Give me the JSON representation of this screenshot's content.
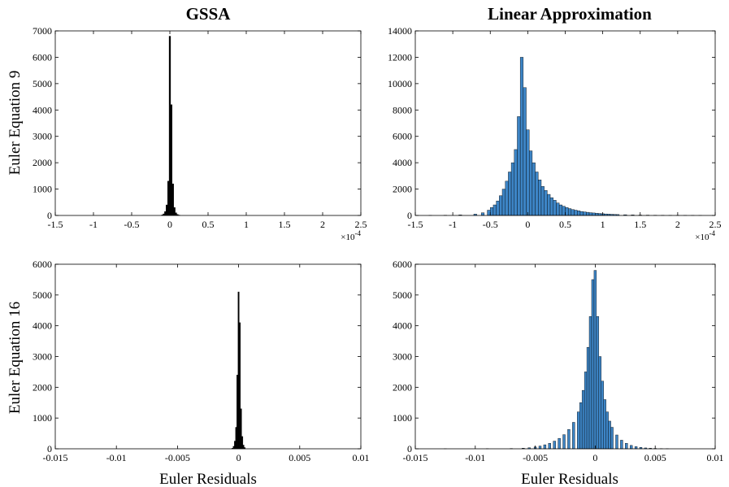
{
  "figure": {
    "col_titles": [
      "GSSA",
      "Linear Approximation"
    ],
    "row_labels": [
      "Euler Equation 9",
      "Euler Equation 16"
    ],
    "xlabel": "Euler Residuals",
    "exponent_label": "×10",
    "exponent_power": "-4"
  },
  "chart_data": [
    {
      "type": "bar",
      "subplot": "top-left",
      "column_title": "GSSA",
      "row_label": "Euler Equation 9",
      "xlim": [
        -1.5,
        2.5
      ],
      "ylim": [
        0,
        7000
      ],
      "x_scale_note": "×10^-4",
      "xticks": [
        -1.5,
        -1,
        -0.5,
        0,
        0.5,
        1,
        1.5,
        2,
        2.5
      ],
      "xtick_labels": [
        "-1.5",
        "-1",
        "-0.5",
        "0",
        "0.5",
        "1",
        "1.5",
        "2",
        "2.5"
      ],
      "yticks": [
        0,
        1000,
        2000,
        3000,
        4000,
        5000,
        6000,
        7000
      ],
      "ytick_labels": [
        "0",
        "1000",
        "2000",
        "3000",
        "4000",
        "5000",
        "6000",
        "7000"
      ],
      "bar_color": "#000000",
      "bar_width": 0.02,
      "bins": [
        {
          "x": -0.1,
          "count": 20
        },
        {
          "x": -0.08,
          "count": 60
        },
        {
          "x": -0.06,
          "count": 150
        },
        {
          "x": -0.04,
          "count": 400
        },
        {
          "x": -0.02,
          "count": 1300
        },
        {
          "x": 0.0,
          "count": 6800
        },
        {
          "x": 0.02,
          "count": 4200
        },
        {
          "x": 0.04,
          "count": 1200
        },
        {
          "x": 0.06,
          "count": 300
        },
        {
          "x": 0.08,
          "count": 100
        },
        {
          "x": 0.1,
          "count": 40
        },
        {
          "x": 0.12,
          "count": 15
        }
      ]
    },
    {
      "type": "bar",
      "subplot": "top-right",
      "column_title": "Linear Approximation",
      "xlim": [
        -1.5,
        2.5
      ],
      "ylim": [
        0,
        14000
      ],
      "x_scale_note": "×10^-4",
      "xticks": [
        -1.5,
        -1,
        -0.5,
        0,
        0.5,
        1,
        1.5,
        2,
        2.5
      ],
      "xtick_labels": [
        "-1.5",
        "-1",
        "-0.5",
        "0",
        "0.5",
        "1",
        "1.5",
        "2",
        "2.5"
      ],
      "yticks": [
        0,
        2000,
        4000,
        6000,
        8000,
        10000,
        12000,
        14000
      ],
      "ytick_labels": [
        "0",
        "2000",
        "4000",
        "6000",
        "8000",
        "10000",
        "12000",
        "14000"
      ],
      "bar_color": "#3d85c6",
      "bar_width": 0.04,
      "bins": [
        {
          "x": -1.3,
          "count": 10
        },
        {
          "x": -1.1,
          "count": 20
        },
        {
          "x": -0.9,
          "count": 40
        },
        {
          "x": -0.7,
          "count": 100
        },
        {
          "x": -0.6,
          "count": 200
        },
        {
          "x": -0.52,
          "count": 400
        },
        {
          "x": -0.48,
          "count": 600
        },
        {
          "x": -0.44,
          "count": 800
        },
        {
          "x": -0.4,
          "count": 1100
        },
        {
          "x": -0.36,
          "count": 1500
        },
        {
          "x": -0.32,
          "count": 2000
        },
        {
          "x": -0.28,
          "count": 2600
        },
        {
          "x": -0.24,
          "count": 3300
        },
        {
          "x": -0.2,
          "count": 4000
        },
        {
          "x": -0.16,
          "count": 5000
        },
        {
          "x": -0.12,
          "count": 7500
        },
        {
          "x": -0.08,
          "count": 12000
        },
        {
          "x": -0.04,
          "count": 9700
        },
        {
          "x": 0.0,
          "count": 6500
        },
        {
          "x": 0.04,
          "count": 4900
        },
        {
          "x": 0.08,
          "count": 4000
        },
        {
          "x": 0.12,
          "count": 3300
        },
        {
          "x": 0.16,
          "count": 2700
        },
        {
          "x": 0.2,
          "count": 2200
        },
        {
          "x": 0.24,
          "count": 1900
        },
        {
          "x": 0.28,
          "count": 1600
        },
        {
          "x": 0.32,
          "count": 1350
        },
        {
          "x": 0.36,
          "count": 1150
        },
        {
          "x": 0.4,
          "count": 950
        },
        {
          "x": 0.44,
          "count": 800
        },
        {
          "x": 0.48,
          "count": 700
        },
        {
          "x": 0.52,
          "count": 600
        },
        {
          "x": 0.56,
          "count": 520
        },
        {
          "x": 0.6,
          "count": 450
        },
        {
          "x": 0.64,
          "count": 400
        },
        {
          "x": 0.68,
          "count": 350
        },
        {
          "x": 0.72,
          "count": 300
        },
        {
          "x": 0.76,
          "count": 270
        },
        {
          "x": 0.8,
          "count": 240
        },
        {
          "x": 0.84,
          "count": 210
        },
        {
          "x": 0.88,
          "count": 190
        },
        {
          "x": 0.92,
          "count": 170
        },
        {
          "x": 0.96,
          "count": 150
        },
        {
          "x": 1.0,
          "count": 130
        },
        {
          "x": 1.04,
          "count": 115
        },
        {
          "x": 1.08,
          "count": 100
        },
        {
          "x": 1.12,
          "count": 90
        },
        {
          "x": 1.16,
          "count": 80
        },
        {
          "x": 1.2,
          "count": 70
        },
        {
          "x": 1.3,
          "count": 55
        },
        {
          "x": 1.4,
          "count": 40
        },
        {
          "x": 1.5,
          "count": 30
        },
        {
          "x": 1.6,
          "count": 25
        },
        {
          "x": 1.7,
          "count": 20
        },
        {
          "x": 1.8,
          "count": 15
        },
        {
          "x": 1.9,
          "count": 12
        },
        {
          "x": 2.0,
          "count": 10
        },
        {
          "x": 2.1,
          "count": 8
        },
        {
          "x": 2.2,
          "count": 6
        },
        {
          "x": 2.3,
          "count": 4
        }
      ]
    },
    {
      "type": "bar",
      "subplot": "bottom-left",
      "row_label": "Euler Equation 16",
      "xlabel": "Euler Residuals",
      "xlim": [
        -0.015,
        0.01
      ],
      "ylim": [
        0,
        6000
      ],
      "xticks": [
        -0.015,
        -0.01,
        -0.005,
        0,
        0.005,
        0.01
      ],
      "xtick_labels": [
        "-0.015",
        "-0.01",
        "-0.005",
        "0",
        "0.005",
        "0.01"
      ],
      "yticks": [
        0,
        1000,
        2000,
        3000,
        4000,
        5000,
        6000
      ],
      "ytick_labels": [
        "0",
        "1000",
        "2000",
        "3000",
        "4000",
        "5000",
        "6000"
      ],
      "bar_color": "#000000",
      "bar_width": 0.0001,
      "bins": [
        {
          "x": -0.0005,
          "count": 20
        },
        {
          "x": -0.0004,
          "count": 80
        },
        {
          "x": -0.0003,
          "count": 250
        },
        {
          "x": -0.0002,
          "count": 700
        },
        {
          "x": -0.0001,
          "count": 2400
        },
        {
          "x": 0.0,
          "count": 5100
        },
        {
          "x": 0.0001,
          "count": 4100
        },
        {
          "x": 0.0002,
          "count": 1300
        },
        {
          "x": 0.0003,
          "count": 400
        },
        {
          "x": 0.0004,
          "count": 120
        },
        {
          "x": 0.0005,
          "count": 40
        }
      ]
    },
    {
      "type": "bar",
      "subplot": "bottom-right",
      "xlabel": "Euler Residuals",
      "xlim": [
        -0.015,
        0.01
      ],
      "ylim": [
        0,
        6000
      ],
      "xticks": [
        -0.015,
        -0.01,
        -0.005,
        0,
        0.005,
        0.01
      ],
      "xtick_labels": [
        "-0.015",
        "-0.01",
        "-0.005",
        "0",
        "0.005",
        "0.01"
      ],
      "yticks": [
        0,
        1000,
        2000,
        3000,
        4000,
        5000,
        6000
      ],
      "ytick_labels": [
        "0",
        "1000",
        "2000",
        "3000",
        "4000",
        "5000",
        "6000"
      ],
      "bar_color": "#3d85c6",
      "bar_width": 0.0002,
      "bins": [
        {
          "x": -0.0125,
          "count": 3
        },
        {
          "x": -0.009,
          "count": 5
        },
        {
          "x": -0.007,
          "count": 10
        },
        {
          "x": -0.006,
          "count": 20
        },
        {
          "x": -0.0055,
          "count": 35
        },
        {
          "x": -0.005,
          "count": 60
        },
        {
          "x": -0.0046,
          "count": 90
        },
        {
          "x": -0.0042,
          "count": 130
        },
        {
          "x": -0.0038,
          "count": 180
        },
        {
          "x": -0.0034,
          "count": 250
        },
        {
          "x": -0.003,
          "count": 340
        },
        {
          "x": -0.0026,
          "count": 460
        },
        {
          "x": -0.0022,
          "count": 630
        },
        {
          "x": -0.0018,
          "count": 860
        },
        {
          "x": -0.0014,
          "count": 1200
        },
        {
          "x": -0.0012,
          "count": 1500
        },
        {
          "x": -0.001,
          "count": 1900
        },
        {
          "x": -0.0008,
          "count": 2500
        },
        {
          "x": -0.0006,
          "count": 3300
        },
        {
          "x": -0.0004,
          "count": 4300
        },
        {
          "x": -0.0002,
          "count": 5500
        },
        {
          "x": 0.0,
          "count": 5800
        },
        {
          "x": 0.0002,
          "count": 4300
        },
        {
          "x": 0.0004,
          "count": 3000
        },
        {
          "x": 0.0006,
          "count": 2200
        },
        {
          "x": 0.0008,
          "count": 1600
        },
        {
          "x": 0.001,
          "count": 1200
        },
        {
          "x": 0.0012,
          "count": 900
        },
        {
          "x": 0.0014,
          "count": 700
        },
        {
          "x": 0.0018,
          "count": 450
        },
        {
          "x": 0.0022,
          "count": 280
        },
        {
          "x": 0.0026,
          "count": 180
        },
        {
          "x": 0.003,
          "count": 110
        },
        {
          "x": 0.0034,
          "count": 70
        },
        {
          "x": 0.0038,
          "count": 45
        },
        {
          "x": 0.0042,
          "count": 28
        },
        {
          "x": 0.0046,
          "count": 18
        },
        {
          "x": 0.005,
          "count": 12
        },
        {
          "x": 0.0055,
          "count": 7
        },
        {
          "x": 0.006,
          "count": 4
        }
      ]
    }
  ]
}
